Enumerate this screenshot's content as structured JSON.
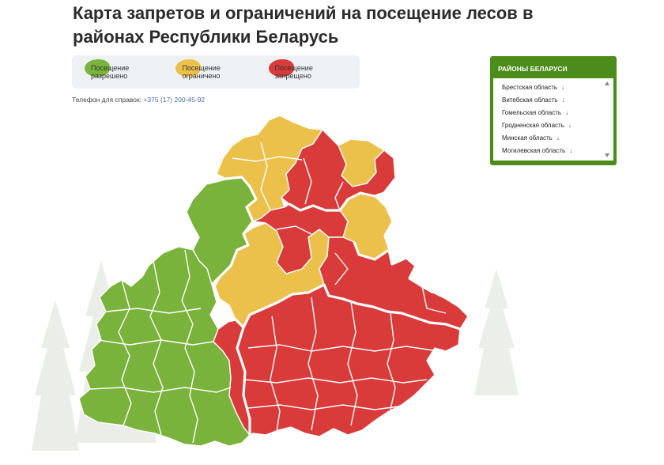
{
  "page": {
    "title": "Карта запретов и ограничений на посещение лесов в районах Республики Беларусь",
    "phone_label": "Телефон для справок:",
    "phone_number": "+375 (17) 200-45-92"
  },
  "legend": {
    "items": [
      {
        "label": "Посещение разрешено",
        "color": "#7ab33c"
      },
      {
        "label": "Посещение ограничено",
        "color": "#ebc14c"
      },
      {
        "label": "Посещение запрещено",
        "color": "#d93a3a"
      }
    ]
  },
  "regions_panel": {
    "title": "РАЙОНЫ БЕЛАРУСИ",
    "items": [
      "Брестская область",
      "Витебская область",
      "Гомельская область",
      "Гродненская область",
      "Минская область",
      "Могилевская область"
    ],
    "arrow_glyph": "↓"
  },
  "map": {
    "status_colors": {
      "allowed": "#7ab33c",
      "restricted": "#ebc14c",
      "forbidden": "#d93a3a"
    }
  }
}
